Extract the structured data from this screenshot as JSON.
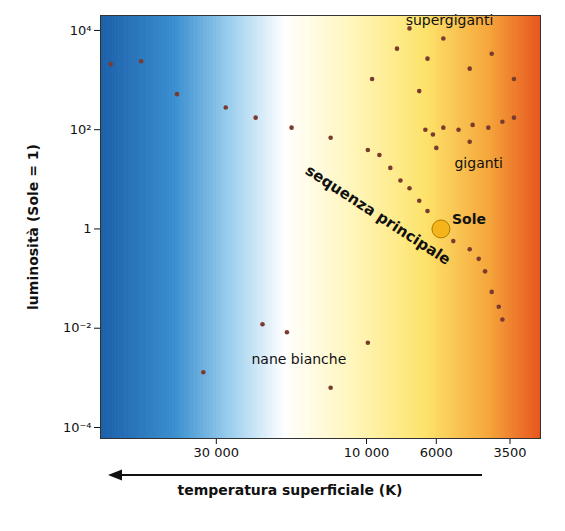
{
  "chart_data": {
    "type": "scatter",
    "xlabel": "temperatura superficiale (K)",
    "ylabel": "luminosità (Sole = 1)",
    "log": true,
    "grid": false,
    "marker": "circle",
    "color": "#7a3b2e",
    "xlim": [
      70000,
      2800
    ],
    "ylim": [
      6e-05,
      20000
    ],
    "xticks": [
      {
        "value": 30000,
        "label": "30 000"
      },
      {
        "value": 10000,
        "label": "10 000"
      },
      6000,
      3500
    ],
    "yticks": [
      {
        "value": 10000,
        "label": "10⁴"
      },
      {
        "value": 100,
        "label": "10²"
      },
      1,
      {
        "value": 0.01,
        "label": "10⁻²"
      },
      {
        "value": 0.0001,
        "label": "10⁻⁴"
      }
    ],
    "x": [
      65000,
      52000,
      40000,
      28000,
      22500,
      17300,
      13000,
      9900,
      9100,
      8400,
      7800,
      7300,
      6800,
      6400,
      5300,
      4700,
      4400,
      4200,
      4000,
      3800,
      3700,
      6500,
      6150,
      5700,
      5100,
      4600,
      4100,
      3700,
      3400,
      6000,
      4700,
      6400,
      5700,
      4700,
      4000,
      3400,
      6800,
      7300,
      8000,
      9600,
      21400,
      17900,
      9900,
      33000,
      13000
    ],
    "y": [
      2100,
      2400,
      520,
      280,
      175,
      110,
      69,
      39,
      31,
      17,
      9.5,
      6.6,
      3.7,
      2.3,
      0.57,
      0.39,
      0.25,
      0.14,
      0.054,
      0.027,
      0.015,
      100,
      80,
      110,
      100,
      125,
      110,
      145,
      175,
      43,
      57,
      2700,
      6900,
      1700,
      3400,
      1050,
      600,
      11000,
      4300,
      1050,
      0.012,
      0.0083,
      0.0051,
      0.0013,
      0.00063
    ],
    "highlight": {
      "text": "Sole",
      "x": 5800,
      "y": 1,
      "color": "#f4b41a"
    },
    "annotations": [
      {
        "text": "supergiganti",
        "x": 5450,
        "y": 16000
      },
      {
        "text": "giganti",
        "x": 4400,
        "y": 21
      },
      {
        "text": "sequenza principale",
        "x": 9200,
        "y": 1.9
      },
      {
        "text": "nane bianche",
        "x": 16400,
        "y": 0.0023
      }
    ]
  }
}
